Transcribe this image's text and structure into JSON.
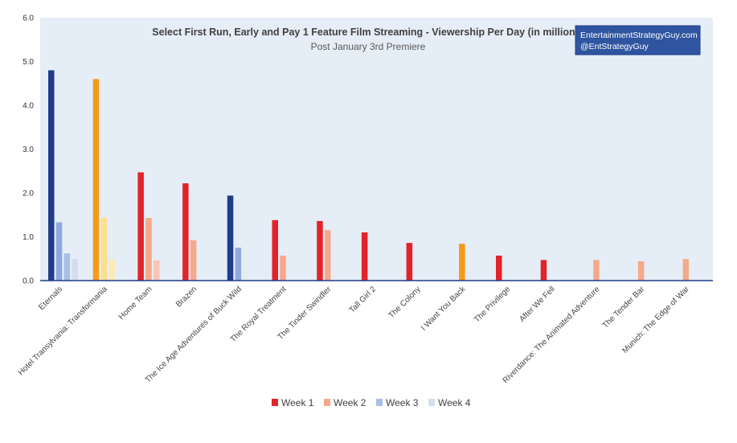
{
  "chart_data": {
    "type": "bar",
    "title": "Select First Run, Early and Pay 1 Feature Film Streaming - Viewership Per Day (in millions)",
    "subtitle": "Post January 3rd Premiere",
    "ylim": [
      0,
      6
    ],
    "yticks": [
      "0.0",
      "1.0",
      "2.0",
      "3.0",
      "4.0",
      "5.0",
      "6.0"
    ],
    "grid": false,
    "legend_position": "bottom",
    "categories": [
      "Eternals",
      "Hotel Transylvania: Transformania",
      "Home Team",
      "Brazen",
      "The Ice Age Adventures of Buck Wild",
      "The Royal Treatment",
      "The Tinder Swindler",
      "Tall Girl 2",
      "The Colony",
      "I Want You Back",
      "The Privilege",
      "After We Fell",
      "Riverdance: The Animated Adventure",
      "The Tender Bar",
      "Munich: The Edge of War"
    ],
    "series": [
      {
        "name": "Week 1",
        "values": [
          4.8,
          4.6,
          2.47,
          2.22,
          1.94,
          1.38,
          1.36,
          1.1,
          0.86,
          null,
          0.57,
          0.47,
          null,
          null,
          null
        ]
      },
      {
        "name": "Week 2",
        "values": [
          1.33,
          1.43,
          1.43,
          0.92,
          0.75,
          0.57,
          1.15,
          null,
          null,
          0.84,
          null,
          null,
          0.47,
          0.44,
          0.49
        ]
      },
      {
        "name": "Week 3",
        "values": [
          0.62,
          0.48,
          0.46,
          null,
          null,
          null,
          null,
          null,
          null,
          null,
          null,
          null,
          null,
          null,
          null
        ]
      },
      {
        "name": "Week 4",
        "values": [
          0.5,
          null,
          null,
          null,
          null,
          null,
          null,
          null,
          null,
          null,
          null,
          null,
          null,
          null,
          null
        ]
      }
    ],
    "bar_colors": [
      [
        "#1f3d8a",
        "#8fa9de",
        "#a9bfe6",
        "#d2deef"
      ],
      [
        "#f59a1b",
        "#fce08e",
        "#fde9b3",
        "#fff3d6"
      ],
      [
        "#e3232a",
        "#f5a98a",
        "#f8c7b4",
        "#fbe1d6"
      ],
      [
        "#e3232a",
        "#f5a98a",
        "#f8c7b4",
        "#fbe1d6"
      ],
      [
        "#1f3d8a",
        "#8fa9de",
        "#a9bfe6",
        "#d2deef"
      ],
      [
        "#e3232a",
        "#f5a98a",
        "#f8c7b4",
        "#fbe1d6"
      ],
      [
        "#e3232a",
        "#f5a98a",
        "#f8c7b4",
        "#fbe1d6"
      ],
      [
        "#e3232a",
        "#f5a98a",
        "#f8c7b4",
        "#fbe1d6"
      ],
      [
        "#e3232a",
        "#f5a98a",
        "#f8c7b4",
        "#fbe1d6"
      ],
      [
        "#f59a1b",
        "#f59a1b",
        "#fde9b3",
        "#fff3d6"
      ],
      [
        "#e3232a",
        "#f5a98a",
        "#f8c7b4",
        "#fbe1d6"
      ],
      [
        "#e3232a",
        "#f5a98a",
        "#f8c7b4",
        "#fbe1d6"
      ],
      [
        "#e3232a",
        "#f5a98a",
        "#f8c7b4",
        "#fbe1d6"
      ],
      [
        "#e3232a",
        "#f5a98a",
        "#f8c7b4",
        "#fbe1d6"
      ],
      [
        "#e3232a",
        "#f5a98a",
        "#f8c7b4",
        "#fbe1d6"
      ]
    ],
    "legend": [
      {
        "label": "Week 1",
        "color": "#e3232a"
      },
      {
        "label": "Week 2",
        "color": "#f5a98a"
      },
      {
        "label": "Week 3",
        "color": "#a9bfe6"
      },
      {
        "label": "Week 4",
        "color": "#d2deef"
      }
    ],
    "plot_background": "#e5edf6",
    "axis_color": "#1f3d8a"
  },
  "brand": {
    "line1": "EntertainmentStrategyGuy.com",
    "line2": "@EntStrategyGuy",
    "background": "#2f55a0"
  }
}
